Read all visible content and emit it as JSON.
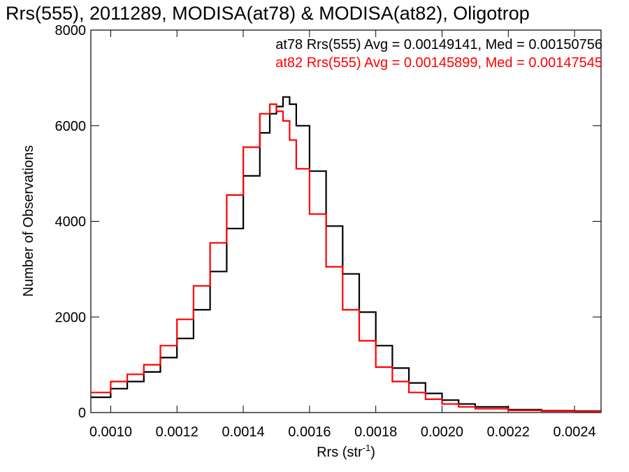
{
  "chart_data": {
    "type": "line",
    "title": "Rrs(555), 2011289, MODISA(at78) & MODISA(at82), Oligotrop",
    "xlabel": "Rrs (str",
    "xlabel_sup": "-1",
    "xlabel_close": ")",
    "ylabel": "Number of Observations",
    "xlim": [
      0.00094,
      0.00248
    ],
    "ylim": [
      0,
      8000
    ],
    "xticks": [
      0.001,
      0.0012,
      0.0014,
      0.0016,
      0.0018,
      0.002,
      0.0022,
      0.0024
    ],
    "xtick_labels": [
      "0.0010",
      "0.0012",
      "0.0014",
      "0.0016",
      "0.0018",
      "0.0020",
      "0.0022",
      "0.0024"
    ],
    "yticks": [
      0,
      2000,
      4000,
      6000,
      8000
    ],
    "ytick_labels": [
      "0",
      "2000",
      "4000",
      "6000",
      "8000"
    ],
    "grid": false,
    "legend_position": "top-right",
    "series": [
      {
        "name": "at78",
        "color": "#000000",
        "legend": "at78 Rrs(555) Avg = 0.00149141, Med = 0.00150756",
        "x": [
          0.00094,
          0.001,
          0.00105,
          0.0011,
          0.00115,
          0.0012,
          0.00125,
          0.0013,
          0.00135,
          0.0014,
          0.00145,
          0.00148,
          0.0015,
          0.00152,
          0.00154,
          0.00156,
          0.0016,
          0.00165,
          0.0017,
          0.00175,
          0.0018,
          0.00185,
          0.0019,
          0.00195,
          0.002,
          0.00205,
          0.0021,
          0.0022,
          0.0023,
          0.0024,
          0.00248
        ],
        "values": [
          320,
          500,
          650,
          850,
          1150,
          1550,
          2150,
          2950,
          3850,
          4950,
          5850,
          6250,
          6400,
          6600,
          6450,
          6000,
          5050,
          3900,
          2900,
          2100,
          1400,
          930,
          620,
          400,
          260,
          180,
          120,
          60,
          40,
          30,
          25
        ]
      },
      {
        "name": "at82",
        "color": "#ff0000",
        "legend": "at82 Rrs(555) Avg = 0.00145899, Med = 0.00147545",
        "x": [
          0.00094,
          0.001,
          0.00105,
          0.0011,
          0.00115,
          0.0012,
          0.00125,
          0.0013,
          0.00135,
          0.0014,
          0.00145,
          0.00148,
          0.0015,
          0.00152,
          0.00154,
          0.00156,
          0.0016,
          0.00165,
          0.0017,
          0.00175,
          0.0018,
          0.00185,
          0.0019,
          0.00195,
          0.002,
          0.00205,
          0.0021,
          0.0022,
          0.0023,
          0.0024,
          0.00248
        ],
        "values": [
          420,
          650,
          800,
          1000,
          1400,
          1950,
          2650,
          3550,
          4550,
          5550,
          6250,
          6450,
          6300,
          6100,
          5700,
          5100,
          4150,
          3050,
          2150,
          1500,
          950,
          650,
          420,
          280,
          180,
          120,
          80,
          45,
          30,
          20,
          15
        ]
      }
    ]
  }
}
